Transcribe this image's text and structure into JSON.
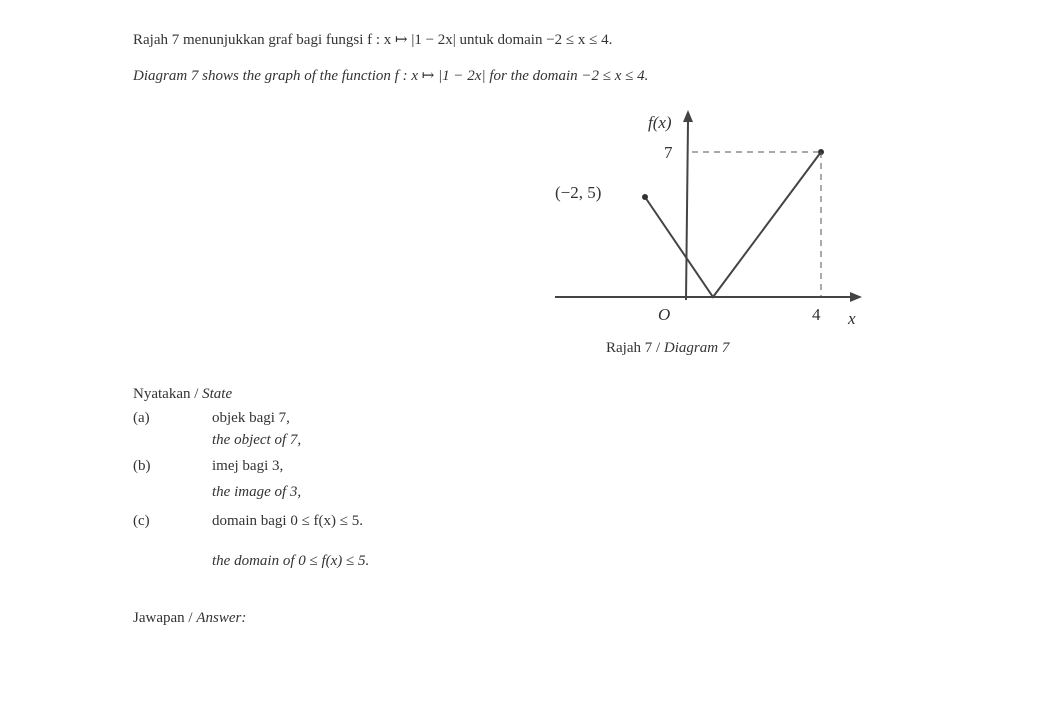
{
  "intro": {
    "ms": "Rajah 7 menunjukkan graf bagi fungsi f : x ↦ |1 − 2x| untuk domain −2 ≤ x ≤ 4.",
    "en": "Diagram 7 shows the graph of the function f : x ↦ |1 − 2x| for the domain −2 ≤ x ≤ 4."
  },
  "diagram": {
    "y_axis_label": "f(x)",
    "y_mark": "7",
    "point_label": "(−2, 5)",
    "origin": "O",
    "x_mark": "4",
    "x_axis_label": "x",
    "caption": {
      "ms": "Rajah 7 /",
      "en": "Diagram 7"
    }
  },
  "instruction": {
    "ms": "Nyatakan /",
    "en": "State"
  },
  "questions": [
    {
      "label": "(a)",
      "ms": "objek bagi 7,",
      "en": "the object of 7,"
    },
    {
      "label": "(b)",
      "ms": "imej bagi 3,",
      "en": "the image of 3,"
    },
    {
      "label": "(c)",
      "ms": "domain bagi 0 ≤ f(x) ≤ 5.",
      "en": "the domain of 0 ≤ f(x) ≤ 5."
    }
  ],
  "answer": {
    "ms": "Jawapan /",
    "en": "Answer:"
  }
}
